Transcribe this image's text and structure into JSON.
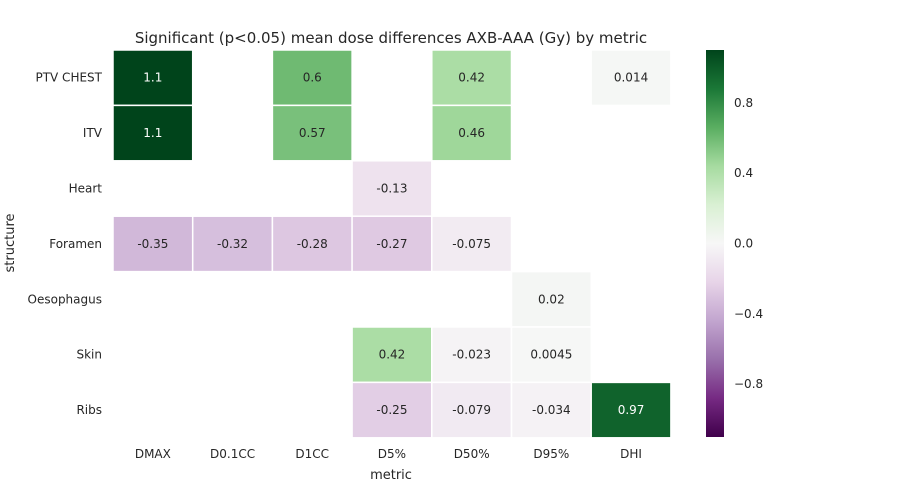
{
  "chart_data": {
    "type": "heatmap",
    "title": "Significant (p<0.05) mean dose differences AXB-AAA (Gy) by metric",
    "xlabel": "metric",
    "ylabel": "structure",
    "x_categories": [
      "DMAX",
      "D0.1CC",
      "D1CC",
      "D5%",
      "D50%",
      "D95%",
      "DHI"
    ],
    "y_categories": [
      "PTV CHEST",
      "ITV",
      "Heart",
      "Foramen",
      "Oesophagus",
      "Skin",
      "Ribs"
    ],
    "values": [
      [
        1.1,
        null,
        0.6,
        null,
        0.42,
        null,
        0.014
      ],
      [
        1.1,
        null,
        0.57,
        null,
        0.46,
        null,
        null
      ],
      [
        null,
        null,
        null,
        -0.13,
        null,
        null,
        null
      ],
      [
        -0.35,
        -0.32,
        -0.28,
        -0.27,
        -0.075,
        null,
        null
      ],
      [
        null,
        null,
        null,
        null,
        null,
        0.02,
        null
      ],
      [
        null,
        null,
        null,
        0.42,
        -0.023,
        0.0045,
        null
      ],
      [
        null,
        null,
        null,
        -0.25,
        -0.079,
        -0.034,
        0.97
      ]
    ],
    "value_labels": [
      [
        "1.1",
        "",
        "0.6",
        "",
        "0.42",
        "",
        "0.014"
      ],
      [
        "1.1",
        "",
        "0.57",
        "",
        "0.46",
        "",
        ""
      ],
      [
        "",
        "",
        "",
        "-0.13",
        "",
        "",
        ""
      ],
      [
        "-0.35",
        "-0.32",
        "-0.28",
        "-0.27",
        "-0.075",
        "",
        ""
      ],
      [
        "",
        "",
        "",
        "",
        "",
        "0.02",
        ""
      ],
      [
        "",
        "",
        "",
        "0.42",
        "-0.023",
        "0.0045",
        ""
      ],
      [
        "",
        "",
        "",
        "-0.25",
        "-0.079",
        "-0.034",
        "0.97"
      ]
    ],
    "colormap": "PRGn",
    "vmin": -1.1,
    "vmax": 1.1,
    "colorbar_ticks": [
      0.8,
      0.4,
      0.0,
      -0.4,
      -0.8
    ],
    "colorbar_tick_labels": [
      "0.8",
      "0.4",
      "0.0",
      "−0.4",
      "−0.8"
    ],
    "grid": false
  }
}
